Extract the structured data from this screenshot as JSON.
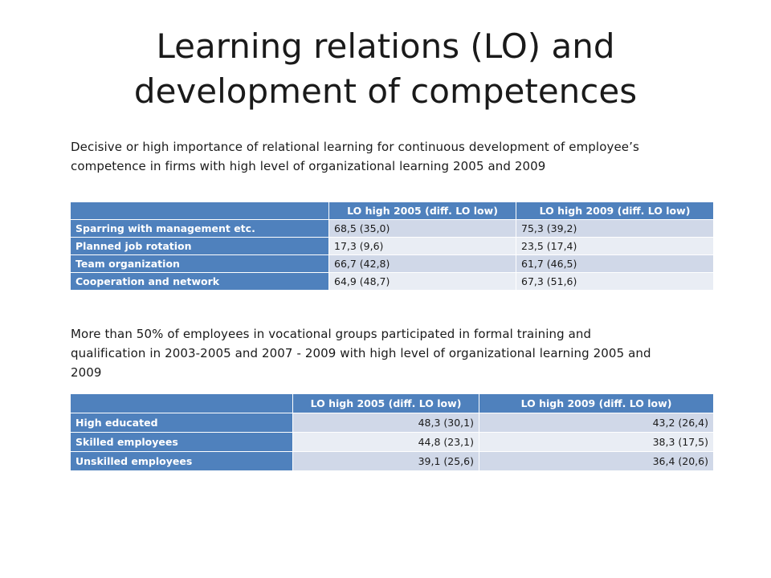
{
  "title": {
    "line1": "Learning relations (LO) and",
    "line2": "development of competences"
  },
  "section1": {
    "text": "Decisive or high importance of relational learning for continuous development of employee’s competence in firms with high level of organizational learning 2005 and 2009",
    "headers": [
      "",
      "LO high 2005 (diff. LO low)",
      "LO high 2009 (diff. LO low)"
    ],
    "rows": [
      {
        "label": "Sparring with management etc.",
        "v2005": "68,5 (35,0)",
        "v2009": "75,3 (39,2)"
      },
      {
        "label": "Planned job rotation",
        "v2005": "17,3 (9,6)",
        "v2009": "23,5 (17,4)"
      },
      {
        "label": "Team organization",
        "v2005": "66,7 (42,8)",
        "v2009": "61,7 (46,5)"
      },
      {
        "label": "Cooperation and network",
        "v2005": "64,9 (48,7)",
        "v2009": "67,3 (51,6)"
      }
    ]
  },
  "section2": {
    "text": "More than 50% of employees in vocational groups participated in formal training and qualification in 2003-2005 and 2007 - 2009 with high level of organizational learning 2005 and 2009",
    "headers": [
      "",
      "LO high 2005 (diff. LO low)",
      "LO high 2009 (diff. LO low)"
    ],
    "rows": [
      {
        "label": "High educated",
        "v2005": "48,3 (30,1)",
        "v2009": "43,2 (26,4)"
      },
      {
        "label": "Skilled employees",
        "v2005": "44,8 (23,1)",
        "v2009": "38,3 (17,5)"
      },
      {
        "label": "Unskilled employees",
        "v2005": "39,1 (25,6)",
        "v2009": "36,4 (20,6)"
      }
    ]
  },
  "colors": {
    "header": "#4f81bd",
    "row_odd": "#d0d8e8",
    "row_even": "#e9edf4"
  }
}
